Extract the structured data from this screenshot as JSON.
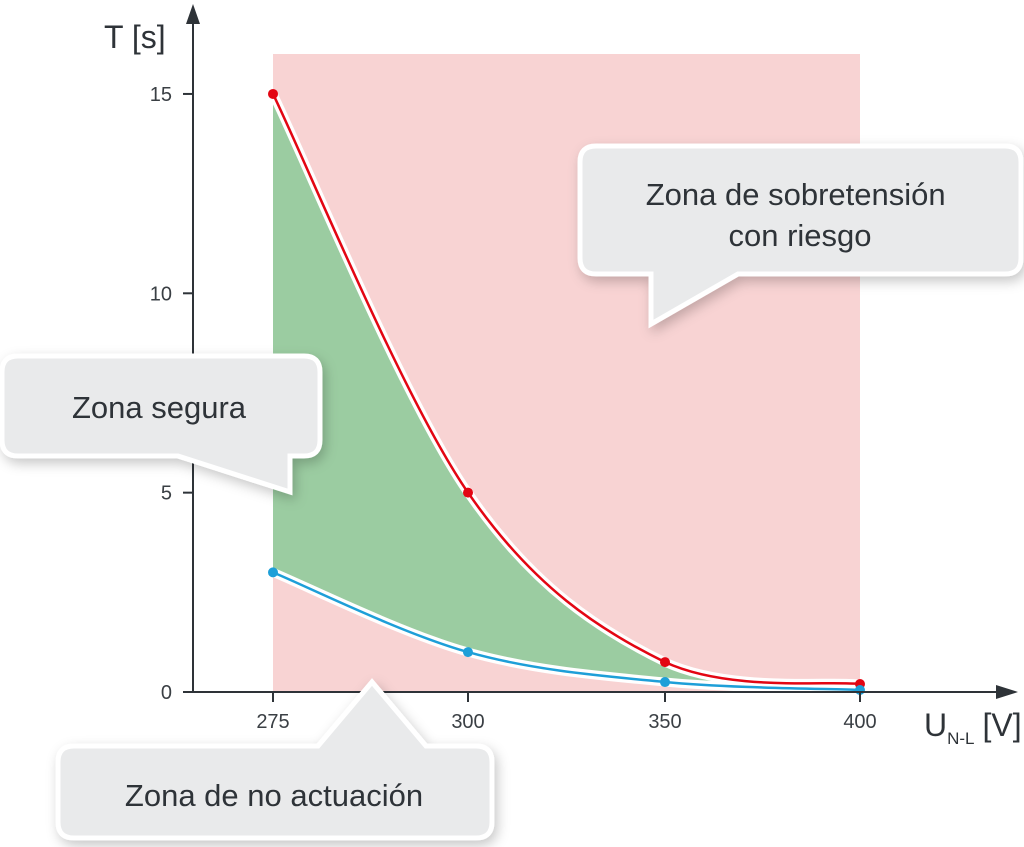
{
  "chart_data": {
    "type": "line",
    "x": [
      275,
      300,
      350,
      400
    ],
    "xticks": [
      "275",
      "300",
      "350",
      "400"
    ],
    "yticks": [
      "0",
      "5",
      "10",
      "15"
    ],
    "xlim": [
      265,
      410
    ],
    "ylim": [
      0,
      16.5
    ],
    "grid": false,
    "axes": {
      "ylabel": "T [s]",
      "xlabel_main": "U",
      "xlabel_sub": "N-L",
      "xlabel_unit": "[V]"
    },
    "series": [
      {
        "values": [
          15,
          5,
          0.75,
          0.2
        ],
        "color": "#e30613"
      },
      {
        "values": [
          3,
          1,
          0.25,
          0.05
        ],
        "color": "#1e9fd8"
      }
    ],
    "regions": {
      "colors": {
        "danger": "#f8d3d3",
        "safe": "#9bcca1"
      }
    },
    "annotations": {
      "danger_line1": "Zona de sobretensión",
      "danger_line2": "con riesgo",
      "safe": "Zona segura",
      "no_action": "Zona de no actuación"
    }
  }
}
